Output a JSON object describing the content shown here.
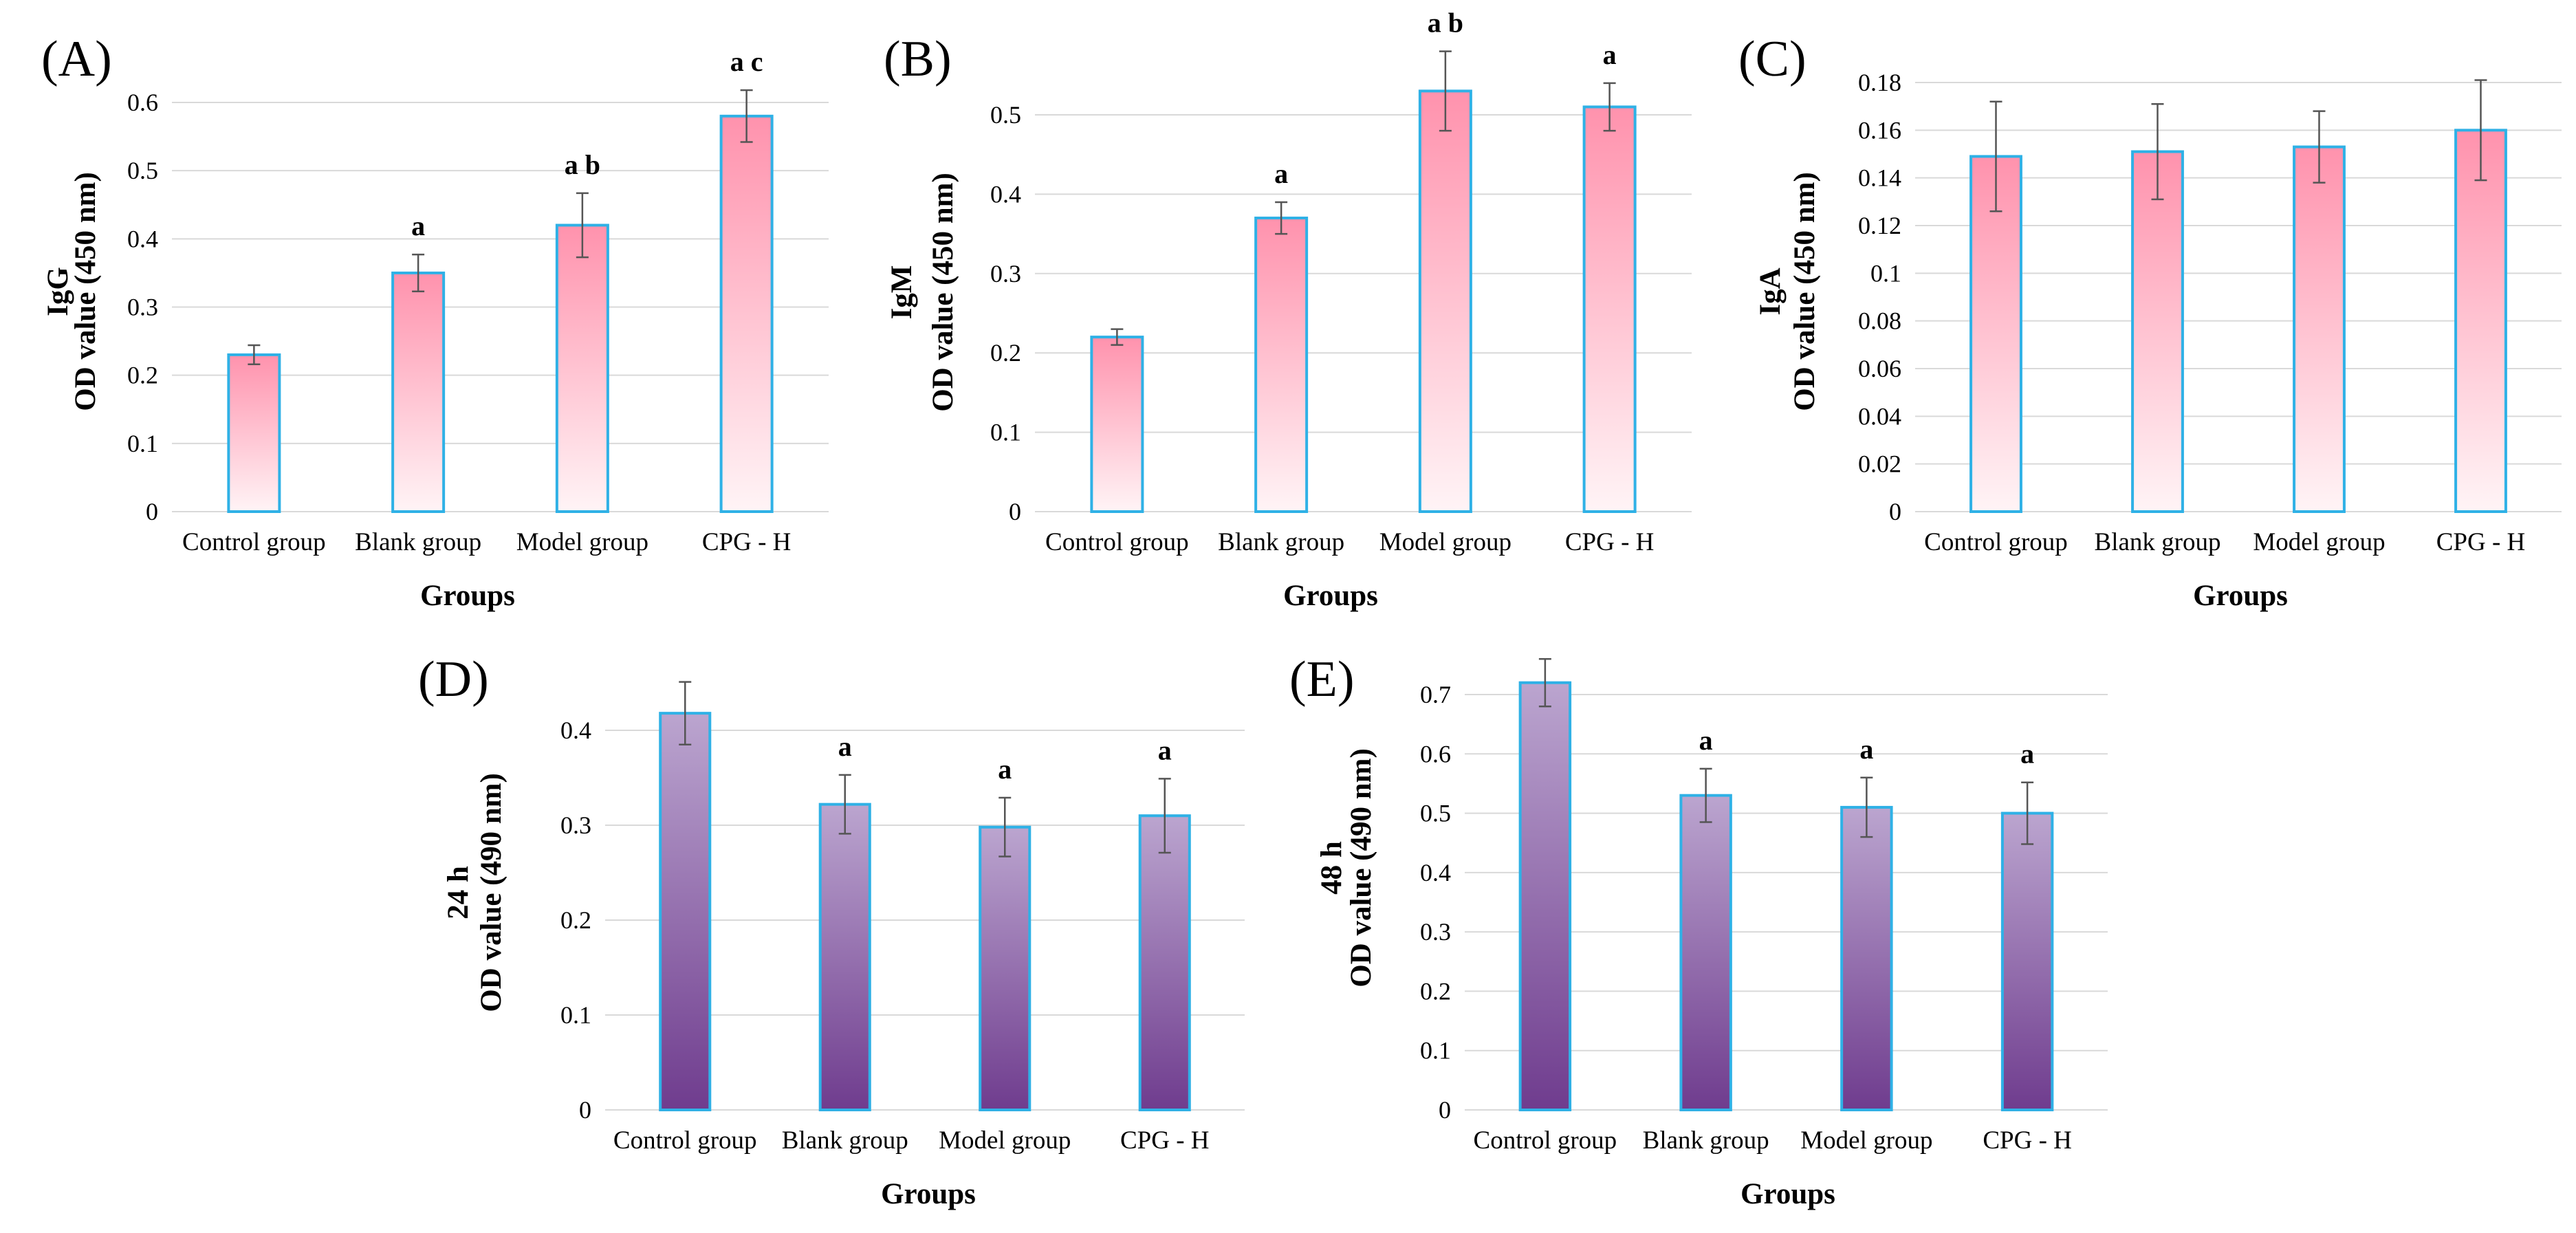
{
  "colors": {
    "pink_top": "#ff92ad",
    "pink_bottom": "#fff4f6",
    "purple_top": "#bba5cf",
    "purple_bottom": "#6f3c8e",
    "bar_outline": "#2fb1e6",
    "grid": "#d9d9d9",
    "error_bar": "#555555"
  },
  "chart_data": [
    {
      "id": "A",
      "panel_label": "(A)",
      "type": "bar",
      "fill": "pink",
      "categories": [
        "Control group",
        "Blank group",
        "Model group",
        "CPG - H"
      ],
      "values": [
        0.23,
        0.35,
        0.42,
        0.58
      ],
      "errors": [
        0.014,
        0.027,
        0.047,
        0.038
      ],
      "significance": [
        "",
        "a",
        "a b",
        "a c"
      ],
      "ylabel_line1": "IgG",
      "ylabel_line2": "OD value (450 nm)",
      "xlabel": "Groups",
      "ylim": [
        0,
        0.6
      ],
      "yticks": [
        "0",
        "0.1",
        "0.2",
        "0.3",
        "0.4",
        "0.5",
        "0.6"
      ],
      "grid": true
    },
    {
      "id": "B",
      "panel_label": "(B)",
      "type": "bar",
      "fill": "pink",
      "categories": [
        "Control group",
        "Blank group",
        "Model group",
        "CPG - H"
      ],
      "values": [
        0.22,
        0.37,
        0.53,
        0.51
      ],
      "errors": [
        0.01,
        0.02,
        0.05,
        0.03
      ],
      "significance": [
        "",
        "a",
        "a b",
        "a"
      ],
      "ylabel_line1": "IgM",
      "ylabel_line2": "OD value (450 nm)",
      "xlabel": "Groups",
      "ylim": [
        0,
        0.5
      ],
      "yticks": [
        "0",
        "0.1",
        "0.2",
        "0.3",
        "0.4",
        "0.5"
      ],
      "grid": true
    },
    {
      "id": "C",
      "panel_label": "(C)",
      "type": "bar",
      "fill": "pink",
      "categories": [
        "Control group",
        "Blank group",
        "Model group",
        "CPG - H"
      ],
      "values": [
        0.149,
        0.151,
        0.153,
        0.16
      ],
      "errors": [
        0.023,
        0.02,
        0.015,
        0.021
      ],
      "significance": [
        "",
        "",
        "",
        ""
      ],
      "ylabel_line1": "IgA",
      "ylabel_line2": "OD value (450 nm)",
      "xlabel": "Groups",
      "ylim": [
        0,
        0.18
      ],
      "yticks": [
        "0",
        "0.02",
        "0.04",
        "0.06",
        "0.08",
        "0.1",
        "0.12",
        "0.14",
        "0.16",
        "0.18"
      ],
      "grid": true
    },
    {
      "id": "D",
      "panel_label": "(D)",
      "type": "bar",
      "fill": "purple",
      "categories": [
        "Control group",
        "Blank group",
        "Model group",
        "CPG - H"
      ],
      "values": [
        0.418,
        0.322,
        0.298,
        0.31
      ],
      "errors": [
        0.033,
        0.031,
        0.031,
        0.039
      ],
      "significance": [
        "",
        "a",
        "a",
        "a"
      ],
      "ylabel_line1": "24 h",
      "ylabel_line2": "OD value (490 nm)",
      "xlabel": "Groups",
      "ylim": [
        0,
        0.4
      ],
      "yticks": [
        "0",
        "0.1",
        "0.2",
        "0.3",
        "0.4"
      ],
      "grid": true
    },
    {
      "id": "E",
      "panel_label": "(E)",
      "type": "bar",
      "fill": "purple",
      "categories": [
        "Control group",
        "Blank group",
        "Model group",
        "CPG - H"
      ],
      "values": [
        0.72,
        0.53,
        0.51,
        0.5
      ],
      "errors": [
        0.04,
        0.045,
        0.05,
        0.052
      ],
      "significance": [
        "",
        "a",
        "a",
        "a"
      ],
      "ylabel_line1": "48 h",
      "ylabel_line2": "OD value (490 nm)",
      "xlabel": "Groups",
      "ylim": [
        0,
        0.7
      ],
      "yticks": [
        "0",
        "0.1",
        "0.2",
        "0.3",
        "0.4",
        "0.5",
        "0.6",
        "0.7"
      ],
      "grid": true
    }
  ]
}
